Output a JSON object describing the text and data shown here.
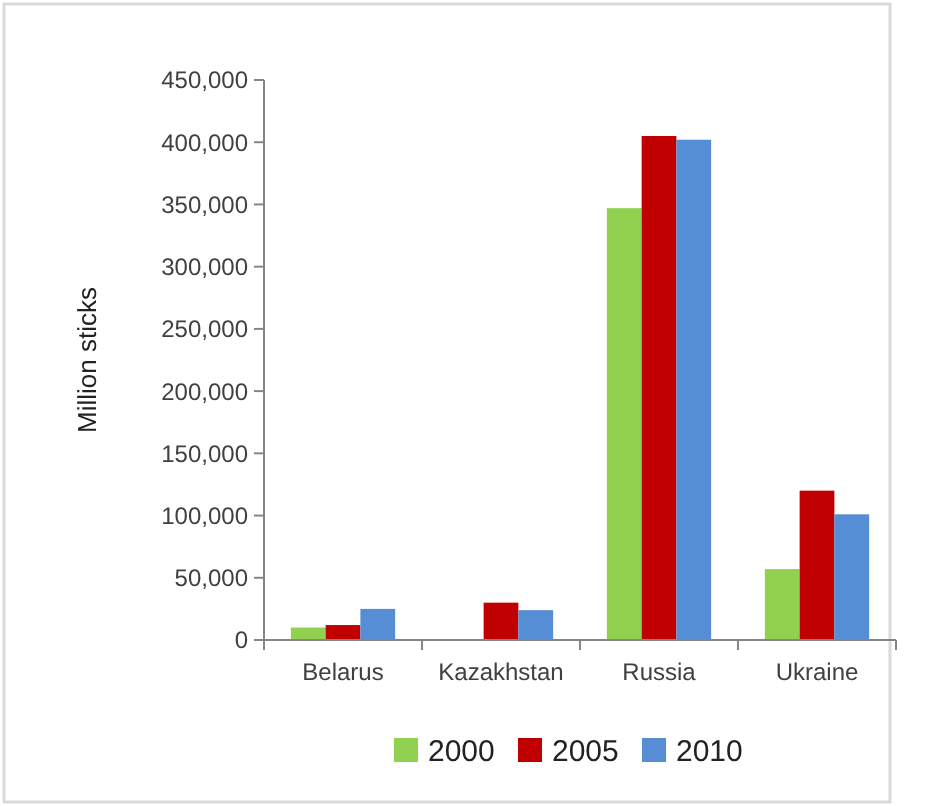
{
  "chart_data": {
    "type": "bar",
    "ylabel": "Million sticks",
    "categories": [
      "Belarus",
      "Kazakhstan",
      "Russia",
      "Ukraine"
    ],
    "series": [
      {
        "name": "2000",
        "color": "#92d050",
        "values": [
          10000,
          null,
          347000,
          57000
        ]
      },
      {
        "name": "2005",
        "color": "#c00000",
        "values": [
          12000,
          30000,
          405000,
          120000
        ]
      },
      {
        "name": "2010",
        "color": "#558ed5",
        "values": [
          25000,
          24000,
          402000,
          101000
        ]
      }
    ],
    "ylim": [
      0,
      450000
    ],
    "yticks": [
      {
        "value": 0,
        "label": "0"
      },
      {
        "value": 50000,
        "label": "50,000"
      },
      {
        "value": 100000,
        "label": "100,000"
      },
      {
        "value": 150000,
        "label": "150,000"
      },
      {
        "value": 200000,
        "label": "200,000"
      },
      {
        "value": 250000,
        "label": "250,000"
      },
      {
        "value": 300000,
        "label": "300,000"
      },
      {
        "value": 350000,
        "label": "350,000"
      },
      {
        "value": 400000,
        "label": "400,000"
      },
      {
        "value": 450000,
        "label": "450,000"
      }
    ],
    "grid": false,
    "legend": "bottom"
  }
}
